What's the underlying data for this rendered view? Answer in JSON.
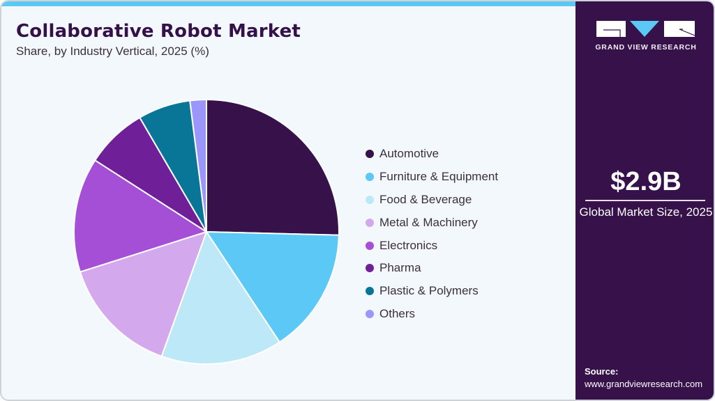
{
  "header": {
    "title": "Collaborative Robot Market",
    "subtitle": "Share, by Industry Vertical, 2025 (%)"
  },
  "brand": {
    "logo_icon": "gvr-logo-icon",
    "name": "GRAND VIEW RESEARCH"
  },
  "summary": {
    "value": "$2.9B",
    "label": "Global Market Size, 2025"
  },
  "source": {
    "label": "Source:",
    "url": "www.grandviewresearch.com"
  },
  "colors": {
    "accent": "#5cc8f5",
    "panel": "#36114a",
    "background": "#f3f8fc",
    "title": "#35114a"
  },
  "legend": [
    {
      "label": "Automotive",
      "color": "#36114a"
    },
    {
      "label": "Furniture & Equipment",
      "color": "#5cc8f5"
    },
    {
      "label": "Food & Beverage",
      "color": "#bde8f8"
    },
    {
      "label": "Metal & Machinery",
      "color": "#d4a8ec"
    },
    {
      "label": "Electronics",
      "color": "#a54fd6"
    },
    {
      "label": "Pharma",
      "color": "#6f1f98"
    },
    {
      "label": "Plastic & Polymers",
      "color": "#0a7697"
    },
    {
      "label": "Others",
      "color": "#9b96fb"
    }
  ],
  "chart_data": {
    "type": "pie",
    "title": "Collaborative Robot Market",
    "subtitle": "Share, by Industry Vertical, 2025 (%)",
    "categories": [
      "Automotive",
      "Furniture & Equipment",
      "Food & Beverage",
      "Metal & Machinery",
      "Electronics",
      "Pharma",
      "Plastic & Polymers",
      "Others"
    ],
    "values": [
      25.4,
      15.3,
      14.8,
      14.6,
      14.0,
      7.5,
      6.4,
      2.0
    ],
    "colors": [
      "#36114a",
      "#5cc8f5",
      "#bde8f8",
      "#d4a8ec",
      "#a54fd6",
      "#6f1f98",
      "#0a7697",
      "#9b96fb"
    ],
    "start_angle": "12 o'clock, clockwise",
    "legend_position": "right",
    "unit": "%"
  }
}
